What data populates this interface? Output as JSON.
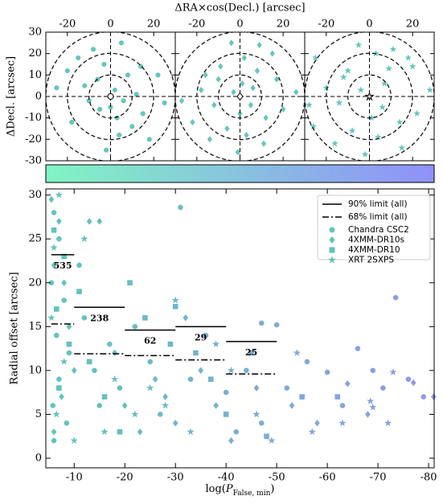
{
  "chart_data": [
    {
      "type": "offset-panels",
      "xlabel": "ΔRA×cos(Decl.) [arcsec]",
      "ylabel": "ΔDecl. [arcsec]",
      "xlim": [
        -30,
        30
      ],
      "ylim": [
        -30,
        30
      ],
      "xticks": [
        -20,
        0,
        20
      ],
      "yticks": [
        -30,
        -20,
        -10,
        0,
        10,
        20,
        30
      ],
      "rings": [
        10,
        20,
        30
      ],
      "colorbar": [
        "#80f5c2",
        "#9090fa"
      ],
      "panels": [
        {
          "marker": "circle",
          "color": "#35b3a3",
          "x": [
            2,
            -5,
            8,
            -12,
            15,
            -3,
            6,
            -18,
            22,
            -8,
            4,
            12,
            -25,
            0,
            -15,
            10,
            -6,
            18,
            -2,
            25,
            -10,
            5,
            -20,
            14,
            3
          ],
          "y": [
            3,
            -6,
            10,
            5,
            -8,
            15,
            -2,
            -12,
            10,
            22,
            -18,
            1,
            4,
            -5,
            18,
            -14,
            8,
            -20,
            -25,
            -3,
            -2,
            25,
            12,
            14,
            -10
          ]
        },
        {
          "marker": "diamond",
          "color": "#35b3a3",
          "x": [
            -3,
            5,
            -10,
            12,
            -18,
            2,
            8,
            -6,
            20,
            -14,
            0,
            15,
            -22,
            6,
            -1,
            -9,
            26,
            11,
            -4,
            17,
            -27,
            3,
            -12,
            9,
            -16,
            1
          ],
          "y": [
            2,
            -4,
            8,
            -10,
            3,
            18,
            12,
            -15,
            -6,
            -20,
            -8,
            20,
            -12,
            4,
            -26,
            14,
            2,
            -22,
            25,
            8,
            -2,
            -18,
            -4,
            24,
            10,
            6
          ]
        },
        {
          "marker": "star",
          "color": "#35b3a3",
          "x": [
            -4,
            6,
            -12,
            14,
            -20,
            3,
            9,
            -8,
            22,
            -16,
            1,
            18,
            -26,
            7,
            -2,
            -10,
            28,
            -25,
            -5,
            15,
            -28,
            4,
            -14,
            11,
            20
          ],
          "y": [
            3,
            -5,
            9,
            -12,
            4,
            20,
            13,
            -16,
            -8,
            -22,
            -10,
            18,
            -14,
            6,
            -27,
            12,
            3,
            18,
            24,
            -24,
            -4,
            -19,
            -3,
            22,
            14
          ]
        }
      ]
    },
    {
      "type": "scatter",
      "xlabel_parts": [
        "log(",
        "P",
        "False, min",
        ")"
      ],
      "ylabel": "Radial offset [arcsec]",
      "xlim": [
        -4.4,
        -81.1
      ],
      "ylim": [
        -1.1,
        30.7
      ],
      "xticks": [
        -10,
        -20,
        -30,
        -40,
        -50,
        -60,
        -70,
        -80
      ],
      "yticks": [
        0,
        5,
        10,
        15,
        20,
        25,
        30
      ],
      "point_colormap": [
        "#2db2a2",
        "#6f78e0"
      ],
      "crange": [
        -5,
        -80
      ],
      "limit_names": [
        "90% limit (all)",
        "68% limit (all)"
      ],
      "bin_edges": [
        -5.5,
        -10,
        -20,
        -30,
        -40,
        -50
      ],
      "r90": [
        23.2,
        17.2,
        14.6,
        15.0,
        13.3
      ],
      "r68": [
        15.3,
        11.9,
        11.7,
        11.2,
        9.6
      ],
      "counts": [
        535,
        238,
        62,
        29,
        25
      ],
      "series": [
        {
          "name": "Chandra CSC2",
          "marker": "circle",
          "x": [
            -6,
            -7,
            -5.5,
            -8,
            -6.5,
            -9,
            -7,
            -5.8,
            -8.5,
            -6,
            -11,
            -12,
            -14,
            -15,
            -17,
            -19,
            -22,
            -25,
            -27,
            -31,
            -33,
            -36,
            -40,
            -44,
            -47,
            -50,
            -52,
            -56,
            -60,
            -63,
            -66,
            -69,
            -71,
            -73.5,
            -76,
            -79,
            -47,
            -42
          ],
          "y": [
            28,
            25,
            20,
            18,
            14,
            12,
            9,
            6,
            4,
            2,
            22,
            16,
            10,
            6,
            13,
            8,
            15,
            11,
            5,
            28.6,
            9,
            14,
            7.5,
            10,
            15.4,
            15.2,
            8,
            11,
            9.8,
            6,
            12.5,
            10,
            8,
            18.3,
            9,
            7,
            4,
            3
          ]
        },
        {
          "name": "4XMM-DR10s",
          "marker": "diamond",
          "x": [
            -5.5,
            -7,
            -6,
            -8,
            -9,
            -10,
            -7.5,
            -6,
            -13,
            -15,
            -18,
            -20,
            -23,
            -26,
            -28,
            -30,
            -32,
            -35,
            -38,
            -41,
            -46,
            -53,
            -58,
            -64,
            -68,
            -77,
            -81
          ],
          "y": [
            29.5,
            27,
            22,
            20,
            15,
            10,
            7,
            3,
            27,
            27,
            12,
            6,
            3,
            9,
            7,
            4,
            16,
            10,
            6,
            2,
            8,
            6,
            4,
            8.5,
            5,
            8.6,
            7
          ]
        },
        {
          "name": "4XMM-DR10",
          "marker": "square",
          "x": [
            -6,
            -8,
            -6.5,
            -9,
            -7,
            -11,
            -13,
            -16,
            -19,
            -21,
            -24,
            -29,
            -30,
            -34,
            -37,
            -40,
            -45,
            -48,
            -55,
            -62
          ],
          "y": [
            26,
            23,
            17,
            13,
            8,
            19,
            11,
            7,
            3,
            20,
            16,
            13,
            17.3,
            12,
            9,
            5,
            12,
            2.5,
            7,
            7
          ]
        },
        {
          "name": "XRT 2SXPS",
          "marker": "star",
          "x": [
            -6,
            -7,
            -5.5,
            -8,
            -6.5,
            -10,
            -12,
            -16,
            -18,
            -22,
            -25,
            -28,
            -30,
            -33,
            -38,
            -41,
            -46,
            -49,
            -54,
            -57,
            -63,
            -68.5,
            -69,
            -73,
            -72
          ],
          "y": [
            24,
            30,
            16,
            11,
            5,
            2,
            25,
            3,
            9,
            5,
            8,
            6,
            18,
            3,
            13,
            10,
            5,
            2,
            12,
            3,
            4,
            6.5,
            5.8,
            9.8,
            4
          ]
        }
      ]
    }
  ]
}
